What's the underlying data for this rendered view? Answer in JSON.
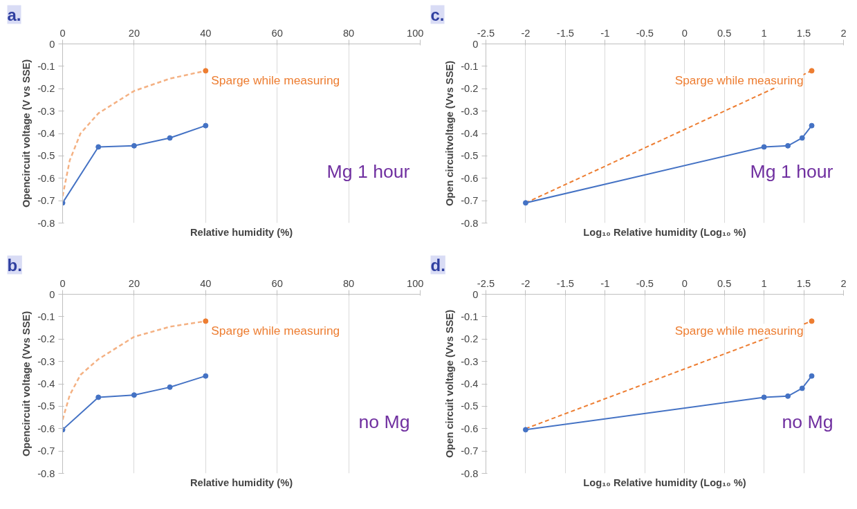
{
  "chart_data": [
    {
      "type": "line",
      "title": "a.",
      "xlabel": "Relative humidity (%)",
      "ylabel": "Opencircuit voltage (V vs SSE)",
      "xlim": [
        0,
        100
      ],
      "xticks": [
        0,
        20,
        40,
        60,
        80,
        100
      ],
      "ylim": [
        -0.8,
        0
      ],
      "yticks": [
        0,
        -0.1,
        -0.2,
        -0.3,
        -0.4,
        -0.5,
        -0.6,
        -0.7,
        -0.8
      ],
      "grid": "x",
      "annotations": [
        "Mg 1 hour"
      ],
      "series": [
        {
          "name": "Sparge while measuring",
          "color": "#f4b183",
          "type": "line",
          "line_style": "dashed",
          "marker": "none",
          "x": [
            0,
            2,
            5,
            10,
            20,
            30,
            40
          ],
          "values": [
            -0.68,
            -0.52,
            -0.4,
            -0.31,
            -0.21,
            -0.155,
            -0.12
          ]
        },
        {
          "color": "#ed7d31",
          "type": "scatter",
          "marker": "circle",
          "x": [
            40
          ],
          "values": [
            -0.12
          ]
        },
        {
          "color": "#4472c4",
          "type": "line",
          "line_style": "solid",
          "marker": "circle",
          "x": [
            0,
            10,
            20,
            30,
            40
          ],
          "values": [
            -0.71,
            -0.46,
            -0.455,
            -0.42,
            -0.365
          ]
        }
      ]
    },
    {
      "type": "line",
      "title": "c.",
      "xlabel": "Log₁₀ Relative humidity (Log₁₀ %)",
      "ylabel": "Open circuitvoltage (Vvs SSE)",
      "xlim": [
        -2.5,
        2
      ],
      "xticks": [
        -2.5,
        -2,
        -1.5,
        -1,
        -0.5,
        0,
        0.5,
        1,
        1.5,
        2
      ],
      "ylim": [
        -0.8,
        0
      ],
      "yticks": [
        0,
        -0.1,
        -0.2,
        -0.3,
        -0.4,
        -0.5,
        -0.6,
        -0.7,
        -0.8
      ],
      "grid": "x",
      "annotations": [
        "Mg 1 hour"
      ],
      "series": [
        {
          "name": "Sparge while measuring",
          "color": "#ed7d31",
          "type": "line",
          "line_style": "dashed",
          "marker": "none",
          "x": [
            -2,
            1.6
          ],
          "values": [
            -0.71,
            -0.12
          ]
        },
        {
          "color": "#ed7d31",
          "type": "scatter",
          "marker": "circle",
          "x": [
            1.6
          ],
          "values": [
            -0.12
          ]
        },
        {
          "color": "#4472c4",
          "type": "line",
          "line_style": "solid",
          "marker": "circle",
          "x": [
            -2,
            1,
            1.3,
            1.48,
            1.6
          ],
          "values": [
            -0.71,
            -0.46,
            -0.455,
            -0.42,
            -0.365
          ]
        }
      ]
    },
    {
      "type": "line",
      "title": "b.",
      "xlabel": "Relative humidity (%)",
      "ylabel": "Opencircuit voltage (Vvs SSE)",
      "xlim": [
        0,
        100
      ],
      "xticks": [
        0,
        20,
        40,
        60,
        80,
        100
      ],
      "ylim": [
        -0.8,
        0
      ],
      "yticks": [
        0,
        -0.1,
        -0.2,
        -0.3,
        -0.4,
        -0.5,
        -0.6,
        -0.7,
        -0.8
      ],
      "grid": "x",
      "annotations": [
        "no Mg"
      ],
      "series": [
        {
          "name": "Sparge while measuring",
          "color": "#f4b183",
          "type": "line",
          "line_style": "dashed",
          "marker": "none",
          "x": [
            0,
            2,
            5,
            10,
            20,
            30,
            40
          ],
          "values": [
            -0.56,
            -0.45,
            -0.36,
            -0.29,
            -0.19,
            -0.145,
            -0.12
          ]
        },
        {
          "color": "#ed7d31",
          "type": "scatter",
          "marker": "circle",
          "x": [
            40
          ],
          "values": [
            -0.12
          ]
        },
        {
          "color": "#4472c4",
          "type": "line",
          "line_style": "solid",
          "marker": "circle",
          "x": [
            0,
            10,
            20,
            30,
            40
          ],
          "values": [
            -0.605,
            -0.46,
            -0.45,
            -0.415,
            -0.365
          ]
        }
      ]
    },
    {
      "type": "line",
      "title": "d.",
      "xlabel": "Log₁₀ Relative humidity (Log₁₀ %)",
      "ylabel": "Open circuit voltage (Vvs SSE)",
      "xlim": [
        -2.5,
        2
      ],
      "xticks": [
        -2.5,
        -2,
        -1.5,
        -1,
        -0.5,
        0,
        0.5,
        1,
        1.5,
        2
      ],
      "ylim": [
        -0.8,
        0
      ],
      "yticks": [
        0,
        -0.1,
        -0.2,
        -0.3,
        -0.4,
        -0.5,
        -0.6,
        -0.7,
        -0.8
      ],
      "grid": "x",
      "annotations": [
        "no Mg"
      ],
      "series": [
        {
          "name": "Sparge while measuring",
          "color": "#ed7d31",
          "type": "line",
          "line_style": "dashed",
          "marker": "none",
          "x": [
            -2,
            1.6
          ],
          "values": [
            -0.6,
            -0.12
          ]
        },
        {
          "color": "#ed7d31",
          "type": "scatter",
          "marker": "circle",
          "x": [
            1.6
          ],
          "values": [
            -0.12
          ]
        },
        {
          "color": "#4472c4",
          "type": "line",
          "line_style": "solid",
          "marker": "circle",
          "x": [
            -2,
            1,
            1.3,
            1.48,
            1.6
          ],
          "values": [
            -0.605,
            -0.46,
            -0.455,
            -0.42,
            -0.365
          ]
        }
      ]
    }
  ]
}
